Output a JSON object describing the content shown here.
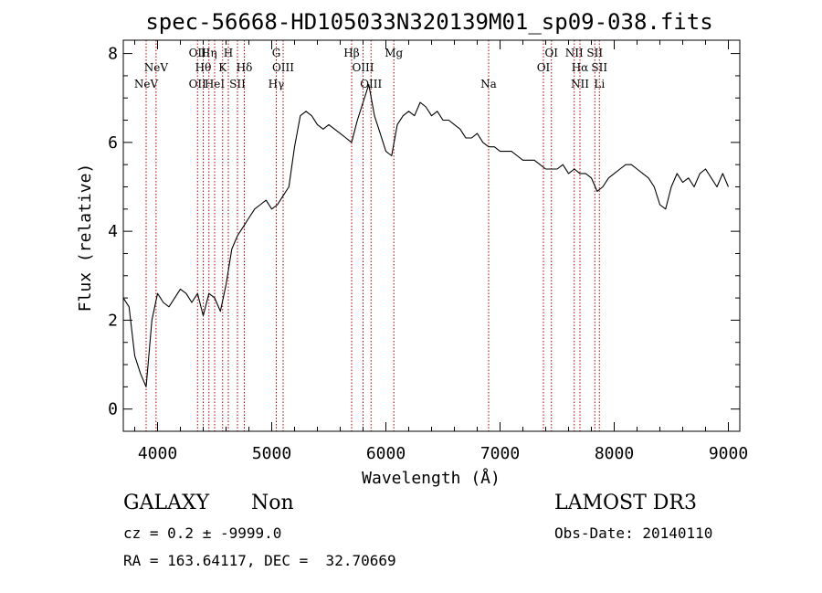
{
  "chart_data": {
    "type": "line",
    "title": "spec-56668-HD105033N320139M01_sp09-038.fits",
    "xlabel": "Wavelength (Å)",
    "ylabel": "Flux (relative)",
    "xlim": [
      3700,
      9100
    ],
    "ylim": [
      -0.5,
      8.3
    ],
    "xticks": [
      4000,
      5000,
      6000,
      7000,
      8000,
      9000
    ],
    "yticks": [
      0,
      2,
      4,
      6,
      8
    ],
    "grid": false,
    "line_color": "#000000",
    "marker_color": "#aa0000",
    "series": [
      {
        "x": [
          3700,
          3750,
          3800,
          3850,
          3900,
          3950,
          4000,
          4050,
          4100,
          4150,
          4200,
          4250,
          4300,
          4350,
          4400,
          4450,
          4500,
          4550,
          4600,
          4650,
          4700,
          4750,
          4800,
          4850,
          4900,
          4950,
          5000,
          5050,
          5100,
          5150,
          5200,
          5250,
          5300,
          5350,
          5400,
          5450,
          5500,
          5550,
          5600,
          5650,
          5700,
          5750,
          5800,
          5850,
          5900,
          5950,
          6000,
          6050,
          6100,
          6150,
          6200,
          6250,
          6300,
          6350,
          6400,
          6450,
          6500,
          6550,
          6600,
          6650,
          6700,
          6750,
          6800,
          6850,
          6900,
          6950,
          7000,
          7050,
          7100,
          7150,
          7200,
          7250,
          7300,
          7350,
          7400,
          7450,
          7500,
          7550,
          7600,
          7650,
          7700,
          7750,
          7800,
          7850,
          7900,
          7950,
          8000,
          8050,
          8100,
          8150,
          8200,
          8250,
          8300,
          8350,
          8400,
          8450,
          8500,
          8550,
          8600,
          8650,
          8700,
          8750,
          8800,
          8850,
          8900,
          8950,
          9000
        ],
        "y": [
          2.5,
          2.3,
          1.2,
          0.8,
          0.5,
          2.0,
          2.6,
          2.4,
          2.3,
          2.5,
          2.7,
          2.6,
          2.4,
          2.6,
          2.1,
          2.6,
          2.5,
          2.2,
          2.8,
          3.6,
          3.9,
          4.1,
          4.3,
          4.5,
          4.6,
          4.7,
          4.5,
          4.6,
          4.8,
          5.0,
          5.9,
          6.6,
          6.7,
          6.6,
          6.4,
          6.3,
          6.4,
          6.3,
          6.2,
          6.1,
          6.0,
          6.5,
          6.9,
          7.3,
          6.6,
          6.2,
          5.8,
          5.7,
          6.4,
          6.6,
          6.7,
          6.6,
          6.9,
          6.8,
          6.6,
          6.7,
          6.5,
          6.5,
          6.4,
          6.3,
          6.1,
          6.1,
          6.2,
          6.0,
          5.9,
          5.9,
          5.8,
          5.8,
          5.8,
          5.7,
          5.6,
          5.6,
          5.6,
          5.5,
          5.4,
          5.4,
          5.4,
          5.5,
          5.3,
          5.4,
          5.3,
          5.3,
          5.2,
          4.9,
          5.0,
          5.2,
          5.3,
          5.4,
          5.5,
          5.5,
          5.4,
          5.3,
          5.2,
          5.0,
          4.6,
          4.5,
          5.0,
          5.3,
          5.1,
          5.2,
          5.0,
          5.3,
          5.4,
          5.2,
          5.0,
          5.3,
          5.0
        ]
      }
    ],
    "lines": [
      {
        "x": 3900,
        "labels": [
          "NeV"
        ],
        "row": 3
      },
      {
        "x": 3987,
        "labels": [
          "NeV"
        ],
        "row": 2
      },
      {
        "x": 4350,
        "labels": [
          "OII",
          "OII"
        ],
        "row": 1
      },
      {
        "x": 4400,
        "labels": [
          "Hθ"
        ],
        "row": 2
      },
      {
        "x": 4450,
        "labels": [
          "Hη"
        ],
        "row": 1
      },
      {
        "x": 4500,
        "labels": [
          "HeI"
        ],
        "row": 3
      },
      {
        "x": 4570,
        "labels": [
          "K"
        ],
        "row": 2
      },
      {
        "x": 4620,
        "labels": [
          "H"
        ],
        "row": 1
      },
      {
        "x": 4700,
        "labels": [
          "SII"
        ],
        "row": 3
      },
      {
        "x": 4760,
        "labels": [
          "Hδ"
        ],
        "row": 2
      },
      {
        "x": 5040,
        "labels": [
          "G",
          "Hγ"
        ],
        "row": 1
      },
      {
        "x": 5100,
        "labels": [
          "OIII"
        ],
        "row": 2
      },
      {
        "x": 5700,
        "labels": [
          "Hβ"
        ],
        "row": 1
      },
      {
        "x": 5800,
        "labels": [
          "OIII"
        ],
        "row": 2
      },
      {
        "x": 5870,
        "labels": [
          "OIII"
        ],
        "row": 3
      },
      {
        "x": 6070,
        "labels": [
          "Mg"
        ],
        "row": 1
      },
      {
        "x": 6900,
        "labels": [
          "Na"
        ],
        "row": 3
      },
      {
        "x": 7380,
        "labels": [
          "OI"
        ],
        "row": 2
      },
      {
        "x": 7450,
        "labels": [
          "OI"
        ],
        "row": 1
      },
      {
        "x": 7650,
        "labels": [
          "NII"
        ],
        "row": 1
      },
      {
        "x": 7700,
        "labels": [
          "Hα",
          "NII"
        ],
        "row": 2
      },
      {
        "x": 7830,
        "labels": [
          "SII"
        ],
        "row": 1
      },
      {
        "x": 7870,
        "labels": [
          "SII",
          "Li"
        ],
        "row": 2
      }
    ]
  },
  "info": {
    "class": "GALAXY",
    "subclass": "Non",
    "survey": "LAMOST DR3",
    "cz": "cz = 0.2 ± -9999.0",
    "obs_date": "Obs-Date: 20140110",
    "radec": "RA = 163.64117, DEC =  32.70669"
  }
}
